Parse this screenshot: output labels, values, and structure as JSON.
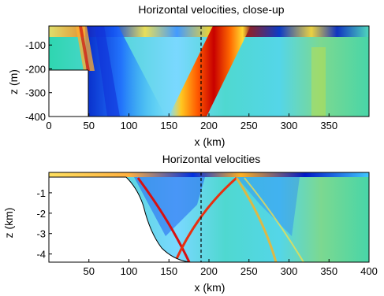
{
  "chart_data": [
    {
      "type": "heatmap",
      "title": "Horizontal velocities, close-up",
      "xlabel": "x (km)",
      "ylabel": "z (m)",
      "xlim": [
        0,
        400
      ],
      "ylim": [
        -400,
        -20
      ],
      "xticks": [
        0,
        50,
        100,
        150,
        200,
        250,
        300,
        350
      ],
      "yticks": [
        -100,
        -200,
        -300,
        -400
      ],
      "xtick_labels": [
        "0",
        "50",
        "100",
        "150",
        "200",
        "250",
        "300",
        "350"
      ],
      "ytick_labels": [
        "-100",
        "-200",
        "-300",
        "-400"
      ],
      "marker_line_x": 188,
      "colormap": "jet",
      "grid": false
    },
    {
      "type": "heatmap",
      "title": "Horizontal velocities",
      "xlabel": "x (km)",
      "ylabel": "z (km)",
      "xlim": [
        0,
        400
      ],
      "ylim": [
        -4.4,
        0
      ],
      "xticks": [
        50,
        100,
        150,
        200,
        250,
        300,
        350,
        400
      ],
      "yticks": [
        -1,
        -2,
        -3,
        -4
      ],
      "xtick_labels": [
        "50",
        "100",
        "150",
        "200",
        "250",
        "300",
        "350",
        "400"
      ],
      "ytick_labels": [
        "-1",
        "-2",
        "-3",
        "-4"
      ],
      "marker_line_x": 188,
      "colormap": "jet",
      "grid": false
    }
  ]
}
